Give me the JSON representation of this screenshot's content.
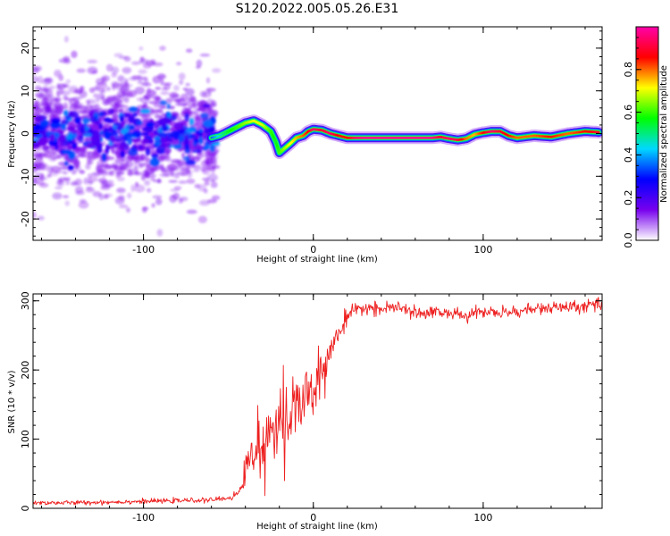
{
  "chart_data": [
    {
      "type": "heatmap",
      "title": "S120.2022.005.05.26.E31",
      "xlabel": "Height of straight line (km)",
      "ylabel": "Frequency (Hz)",
      "xlim": [
        -165,
        170
      ],
      "ylim": [
        -25,
        25
      ],
      "x_ticks": [
        -100,
        0,
        100
      ],
      "y_ticks": [
        -20,
        -10,
        0,
        10,
        20
      ],
      "grid": false,
      "noise_region": {
        "x_start": -165,
        "x_end": -57,
        "y_min": -25,
        "y_max": 25,
        "level": "low"
      },
      "ridge": {
        "x": [
          -60,
          -55,
          -50,
          -45,
          -40,
          -35,
          -30,
          -25,
          -22,
          -20,
          -17,
          -14,
          -10,
          -6,
          -3,
          0,
          5,
          10,
          15,
          20,
          25,
          30,
          40,
          50,
          60,
          70,
          75,
          80,
          85,
          90,
          95,
          100,
          105,
          110,
          115,
          120,
          130,
          140,
          150,
          160,
          168
        ],
        "y": [
          -1.0,
          -0.5,
          0.5,
          1.5,
          2.5,
          3.0,
          2.0,
          0.5,
          -2.0,
          -4.5,
          -3.5,
          -2.5,
          -1.0,
          -0.5,
          0.5,
          1.0,
          0.8,
          0.0,
          -0.5,
          -1.0,
          -1.0,
          -1.0,
          -1.0,
          -1.0,
          -1.0,
          -1.0,
          -0.8,
          -1.2,
          -1.5,
          -1.2,
          -0.2,
          0.2,
          0.5,
          0.5,
          -0.5,
          -1.0,
          -0.5,
          -0.8,
          0.0,
          0.5,
          0.3
        ],
        "amplitude": [
          0.35,
          0.45,
          0.55,
          0.6,
          0.65,
          0.7,
          0.7,
          0.6,
          0.55,
          0.6,
          0.65,
          0.7,
          0.75,
          0.8,
          0.85,
          0.95,
          0.9,
          0.95,
          0.85,
          0.85,
          0.95,
          0.98,
          0.98,
          0.98,
          0.98,
          0.98,
          0.9,
          0.95,
          0.92,
          0.8,
          0.75,
          0.85,
          0.95,
          0.9,
          0.85,
          0.8,
          0.8,
          0.85,
          0.8,
          0.85,
          0.9
        ]
      },
      "colorbar": {
        "label": "Normalized spectral amplitude",
        "ticks": [
          0.0,
          0.2,
          0.4,
          0.6,
          0.8
        ],
        "range": [
          0,
          1
        ],
        "colors": [
          "#ffffff",
          "#7700ee",
          "#0000ff",
          "#00d8ff",
          "#00ff00",
          "#ffff00",
          "#ff0000",
          "#ff00aa"
        ]
      }
    },
    {
      "type": "line",
      "xlabel": "Height of straight line (km)",
      "ylabel": "SNR (10 * v/v)",
      "xlim": [
        -165,
        170
      ],
      "ylim": [
        0,
        310
      ],
      "x_ticks": [
        -100,
        0,
        100
      ],
      "y_ticks": [
        0,
        100,
        200,
        300
      ],
      "grid": false,
      "series": [
        {
          "color": "#ee2020",
          "x": [
            -165,
            -140,
            -120,
            -100,
            -80,
            -60,
            -50,
            -45,
            -42,
            -40,
            -38,
            -35,
            -30,
            -25,
            -20,
            -15,
            -10,
            -5,
            0,
            5,
            10,
            15,
            20,
            25,
            30,
            40,
            50,
            60,
            70,
            80,
            90,
            100,
            110,
            120,
            130,
            140,
            150,
            160,
            170
          ],
          "y": [
            8,
            8,
            9,
            10,
            11,
            12,
            15,
            20,
            30,
            60,
            80,
            75,
            95,
            105,
            120,
            120,
            150,
            160,
            170,
            200,
            230,
            255,
            275,
            285,
            290,
            288,
            290,
            282,
            285,
            282,
            278,
            285,
            282,
            285,
            288,
            290,
            290,
            292,
            295
          ],
          "noise_amplitude": [
            3,
            3,
            3,
            3,
            3,
            3,
            4,
            5,
            8,
            25,
            40,
            40,
            40,
            30,
            35,
            35,
            45,
            45,
            30,
            25,
            20,
            15,
            12,
            10,
            8,
            8,
            8,
            8,
            8,
            8,
            8,
            8,
            8,
            8,
            8,
            8,
            8,
            8,
            8
          ]
        }
      ]
    }
  ]
}
